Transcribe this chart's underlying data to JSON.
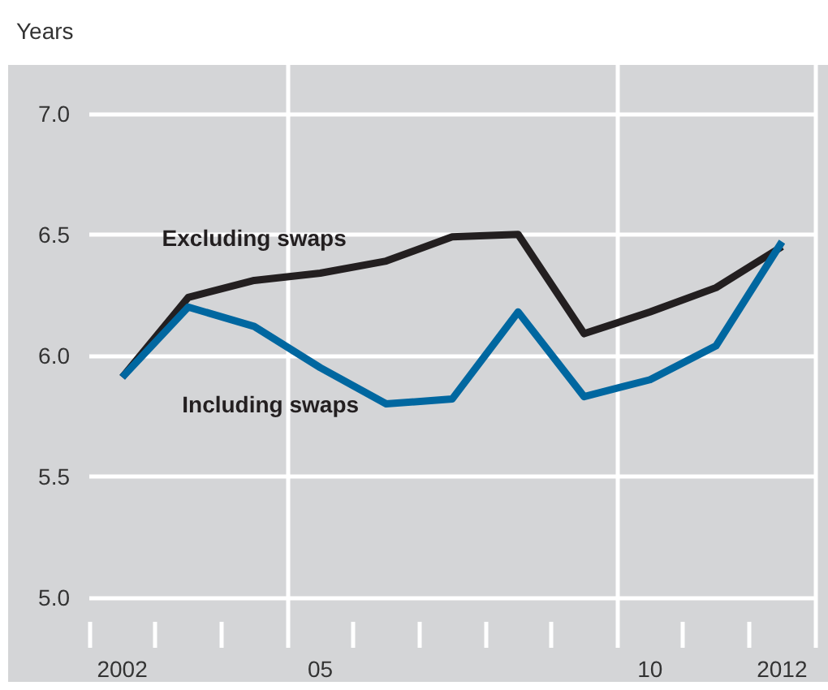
{
  "chart_data": {
    "type": "line",
    "ylabel": "Years",
    "categories": [
      "2002",
      null,
      null,
      "05",
      null,
      null,
      null,
      null,
      "10",
      null,
      "2012"
    ],
    "series": [
      {
        "name": "Excluding swaps",
        "color": "#231f20",
        "values": [
          5.91,
          6.24,
          6.31,
          6.34,
          6.39,
          6.49,
          6.5,
          6.09,
          6.18,
          6.28,
          6.45
        ]
      },
      {
        "name": "Including swaps",
        "color": "#0067a0",
        "values": [
          5.91,
          6.2,
          6.12,
          5.95,
          5.8,
          5.82,
          6.18,
          5.83,
          5.9,
          6.04,
          6.47
        ]
      }
    ],
    "ylim": [
      4.9,
      7.2
    ],
    "yticks": [
      {
        "value": 5,
        "label": "5.0"
      },
      5.5,
      {
        "value": 6,
        "label": "6.0"
      },
      6.5,
      {
        "value": 7,
        "label": "7.0"
      }
    ],
    "grid": true,
    "legend": false,
    "marker": "none",
    "line_style": "solid"
  }
}
